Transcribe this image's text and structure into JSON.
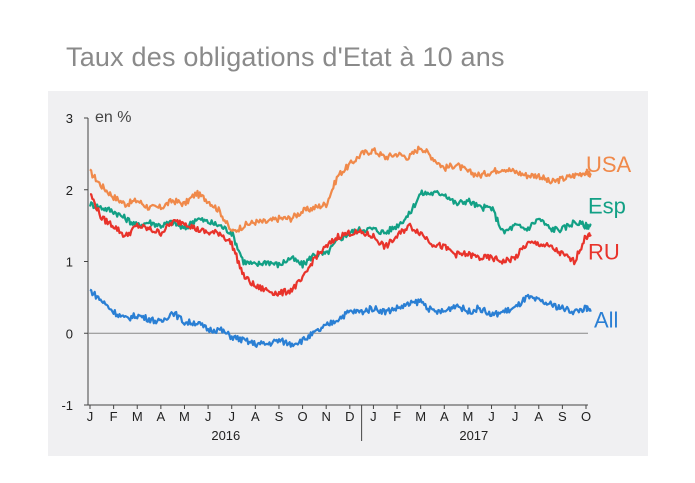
{
  "title": "Taux des obligations d'Etat à 10 ans",
  "chart_data": {
    "type": "line",
    "title": "Taux des obligations d'Etat à 10 ans",
    "ylabel": "en %",
    "ylim": [
      -1,
      3
    ],
    "yticks": [
      "3",
      "2",
      "1",
      "0",
      "-1"
    ],
    "x_months": [
      "J",
      "F",
      "M",
      "A",
      "M",
      "J",
      "J",
      "A",
      "S",
      "O",
      "N",
      "D",
      "J",
      "F",
      "M",
      "A",
      "M",
      "J",
      "J",
      "A",
      "S",
      "O"
    ],
    "years": [
      "2016",
      "2017"
    ],
    "grid": false,
    "series": [
      {
        "name": "USA",
        "color": "#f0894a",
        "x": [
          0,
          0.5,
          1,
          1.5,
          2,
          2.5,
          3,
          3.5,
          4,
          4.5,
          5,
          5.5,
          6,
          6.5,
          7,
          7.5,
          8,
          8.5,
          9,
          9.5,
          10,
          10.5,
          11,
          11.5,
          12,
          12.5,
          13,
          13.5,
          14,
          14.5,
          15,
          15.5,
          16,
          16.5,
          17,
          17.5,
          18,
          18.5,
          19,
          19.5,
          20,
          20.5,
          21,
          21.2
        ],
        "values": [
          2.25,
          2.05,
          1.9,
          1.8,
          1.85,
          1.75,
          1.75,
          1.85,
          1.8,
          1.95,
          1.85,
          1.7,
          1.4,
          1.5,
          1.55,
          1.55,
          1.6,
          1.6,
          1.7,
          1.75,
          1.8,
          2.2,
          2.35,
          2.5,
          2.55,
          2.45,
          2.5,
          2.45,
          2.6,
          2.45,
          2.3,
          2.35,
          2.25,
          2.2,
          2.25,
          2.3,
          2.25,
          2.2,
          2.2,
          2.1,
          2.15,
          2.2,
          2.25,
          2.2
        ]
      },
      {
        "name": "Esp",
        "color": "#12a085",
        "x": [
          0,
          0.5,
          1,
          1.5,
          2,
          2.5,
          3,
          3.5,
          4,
          4.5,
          5,
          5.5,
          6,
          6.5,
          7,
          7.5,
          8,
          8.5,
          9,
          9.5,
          10,
          10.5,
          11,
          11.5,
          12,
          12.5,
          13,
          13.5,
          14,
          14.5,
          15,
          15.5,
          16,
          16.5,
          17,
          17.5,
          18,
          18.5,
          19,
          19.5,
          20,
          20.5,
          21,
          21.2
        ],
        "values": [
          1.8,
          1.75,
          1.7,
          1.6,
          1.5,
          1.55,
          1.5,
          1.55,
          1.45,
          1.6,
          1.55,
          1.5,
          1.4,
          1.0,
          0.95,
          1.0,
          0.95,
          1.05,
          0.95,
          1.1,
          1.1,
          1.3,
          1.4,
          1.45,
          1.45,
          1.4,
          1.5,
          1.65,
          1.95,
          1.95,
          1.95,
          1.8,
          1.85,
          1.75,
          1.75,
          1.4,
          1.5,
          1.45,
          1.6,
          1.45,
          1.45,
          1.55,
          1.5,
          1.5
        ]
      },
      {
        "name": "RU",
        "color": "#e8332b",
        "x": [
          0,
          0.5,
          1,
          1.5,
          2,
          2.5,
          3,
          3.5,
          4,
          4.5,
          5,
          5.5,
          6,
          6.5,
          7,
          7.5,
          8,
          8.5,
          9,
          9.5,
          10,
          10.5,
          11,
          11.5,
          12,
          12.5,
          13,
          13.5,
          14,
          14.5,
          15,
          15.5,
          16,
          16.5,
          17,
          17.5,
          18,
          18.5,
          19,
          19.5,
          20,
          20.5,
          21,
          21.2
        ],
        "values": [
          1.95,
          1.6,
          1.5,
          1.35,
          1.5,
          1.45,
          1.4,
          1.55,
          1.55,
          1.45,
          1.4,
          1.4,
          1.25,
          0.8,
          0.65,
          0.6,
          0.55,
          0.6,
          0.75,
          1.05,
          1.2,
          1.35,
          1.4,
          1.4,
          1.35,
          1.2,
          1.35,
          1.5,
          1.4,
          1.25,
          1.2,
          1.1,
          1.1,
          1.05,
          1.05,
          1.0,
          1.05,
          1.25,
          1.25,
          1.2,
          1.1,
          1.0,
          1.35,
          1.35
        ]
      },
      {
        "name": "All",
        "color": "#2a7fd4",
        "x": [
          0,
          0.5,
          1,
          1.5,
          2,
          2.5,
          3,
          3.5,
          4,
          4.5,
          5,
          5.5,
          6,
          6.5,
          7,
          7.5,
          8,
          8.5,
          9,
          9.5,
          10,
          10.5,
          11,
          11.5,
          12,
          12.5,
          13,
          13.5,
          14,
          14.5,
          15,
          15.5,
          16,
          16.5,
          17,
          17.5,
          18,
          18.5,
          19,
          19.5,
          20,
          20.5,
          21,
          21.2
        ],
        "values": [
          0.6,
          0.45,
          0.3,
          0.2,
          0.25,
          0.2,
          0.15,
          0.3,
          0.15,
          0.15,
          0.05,
          0.05,
          -0.05,
          -0.1,
          -0.15,
          -0.15,
          -0.1,
          -0.15,
          -0.1,
          0.0,
          0.1,
          0.2,
          0.3,
          0.3,
          0.35,
          0.3,
          0.35,
          0.4,
          0.45,
          0.3,
          0.3,
          0.4,
          0.3,
          0.35,
          0.25,
          0.3,
          0.35,
          0.5,
          0.45,
          0.4,
          0.35,
          0.3,
          0.35,
          0.3
        ]
      }
    ]
  }
}
